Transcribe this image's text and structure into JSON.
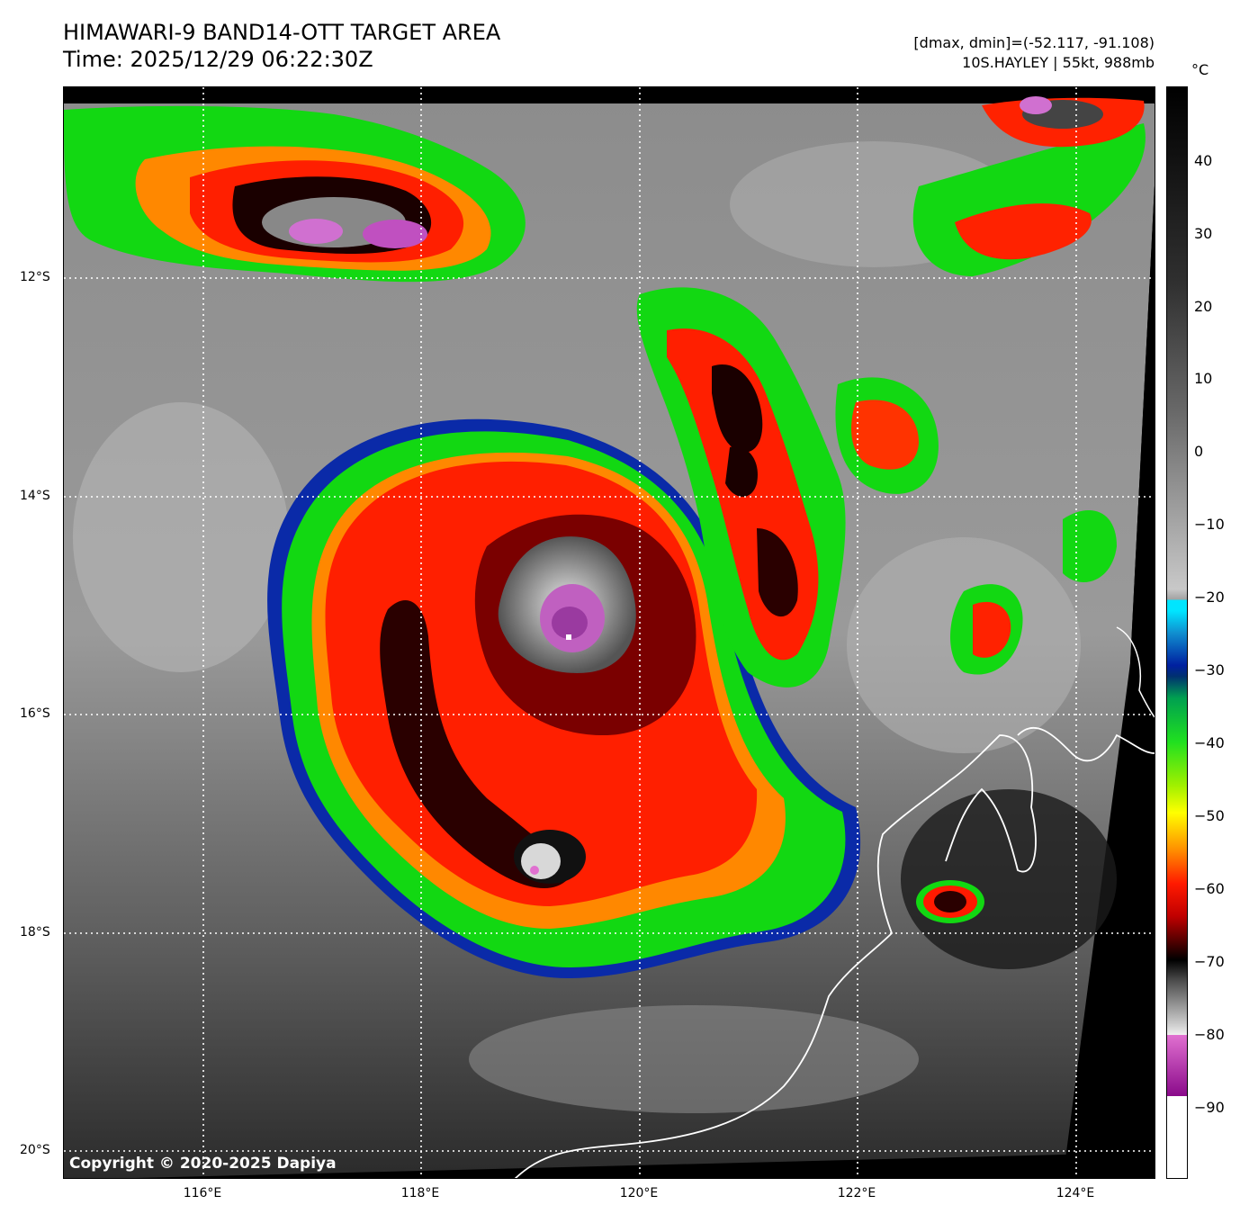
{
  "header": {
    "title_line1": "HIMAWARI-9 BAND14-OTT TARGET AREA",
    "title_line2": "Time: 2025/12/29 06:22:30Z",
    "info_line1": "[dmax, dmin]=(-52.117, -91.108)",
    "info_line2": "10S.HAYLEY | 55kt, 988mb"
  },
  "map": {
    "copyright": "Copyright © 2020-2025 Dapiya",
    "lat_labels": [
      "12°S",
      "14°S",
      "16°S",
      "18°S",
      "20°S"
    ],
    "lon_labels": [
      "116°E",
      "118°E",
      "120°E",
      "122°E",
      "124°E"
    ]
  },
  "colorbar": {
    "unit": "°C",
    "labels": [
      "40",
      "30",
      "20",
      "10",
      "0",
      "−10",
      "−20",
      "−30",
      "−40",
      "−50",
      "−60",
      "−70",
      "−80",
      "−90"
    ],
    "colors": {
      "cold_white": "#ffffff",
      "purple": "#8a0a8a",
      "magenta": "#e070d0",
      "gray_light": "#d0d0d0",
      "black": "#000000",
      "dark_red": "#600000",
      "red": "#ff1a00",
      "orange": "#ff8c00",
      "yellow": "#ffff00",
      "green": "#20e020",
      "blue": "#0020a0",
      "cyan": "#00e5ff",
      "warm_gray": "#a0a0a0"
    }
  }
}
